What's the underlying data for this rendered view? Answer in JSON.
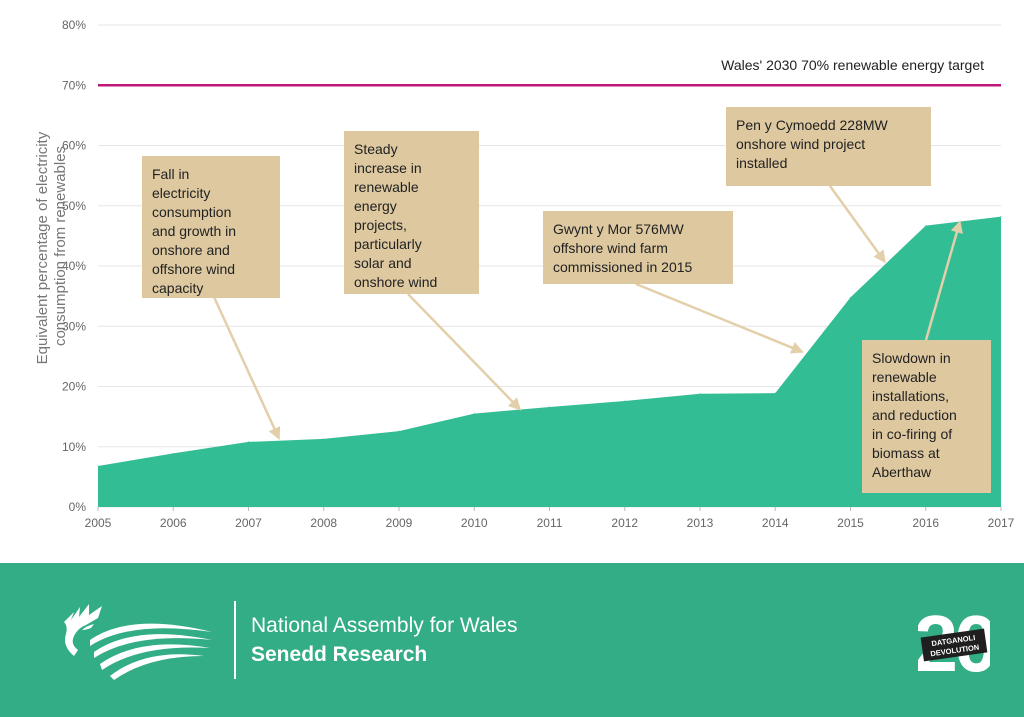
{
  "chart_data": {
    "type": "area",
    "title": "",
    "xlabel": "",
    "ylabel": "Equivalent percentage of electricity consumption from renewables",
    "x": [
      2005,
      2006,
      2007,
      2008,
      2009,
      2010,
      2011,
      2012,
      2013,
      2014,
      2015,
      2016,
      2017
    ],
    "xtick_labels": [
      "2005",
      "2006",
      "2007",
      "2008",
      "2009",
      "2010",
      "2011",
      "2012",
      "2013",
      "2014",
      "2015",
      "2016",
      "2017"
    ],
    "series": [
      {
        "values": [
          6.8,
          8.9,
          10.8,
          11.3,
          12.6,
          15.5,
          16.6,
          17.6,
          18.8,
          18.9,
          34.8,
          46.7,
          48.2
        ],
        "color": "#33bd95"
      }
    ],
    "ylim": [
      0,
      80
    ],
    "yticks": [
      0,
      10,
      20,
      30,
      40,
      50,
      60,
      70,
      80
    ],
    "ytick_labels": [
      "0%",
      "10%",
      "20%",
      "30%",
      "40%",
      "50%",
      "60%",
      "70%",
      "80%"
    ],
    "grid": true,
    "target_line": {
      "value": 70,
      "label": "Wales' 2030 70% renewable energy target",
      "color": "#c0187a"
    },
    "annotations": [
      {
        "text": "Fall in electricity consumption and growth in onshore and offshore wind capacity",
        "lines": [
          "Fall in",
          "electricity",
          "consumption",
          "and growth in",
          "onshore and",
          "offshore wind",
          "capacity"
        ],
        "point": [
          2007.4,
          11.5
        ]
      },
      {
        "text": "Steady increase in renewable energy projects, particularly solar and onshore wind",
        "lines": [
          "Steady",
          "increase in",
          "renewable",
          "energy",
          "projects,",
          "particularly",
          "solar and",
          "onshore wind"
        ],
        "point": [
          2010.6,
          16.3
        ]
      },
      {
        "text": "Gwynt y Mor 576MW offshore wind farm commissioned in 2015",
        "lines": [
          "Gwynt y Mor 576MW",
          "offshore wind farm",
          "commissioned in 2015"
        ],
        "point": [
          2014.35,
          25.8
        ]
      },
      {
        "text": "Pen y Cymoedd 228MW onshore wind project installed",
        "lines": [
          "Pen y Cymoedd 228MW",
          "onshore wind project",
          "installed"
        ],
        "point": [
          2015.45,
          40.8
        ]
      },
      {
        "text": "Slowdown in renewable installations, and reduction in co-firing of biomass at Aberthaw",
        "lines": [
          "Slowdown in",
          "renewable",
          "installations,",
          "and reduction",
          "in co-firing of",
          "biomass at",
          "Aberthaw"
        ],
        "point": [
          2016.45,
          47.2
        ]
      }
    ],
    "colors": {
      "area": "#33bd95",
      "grid": "#e6e6e6",
      "target": "#c0187a",
      "annotation_box": "#ddc8a0",
      "arrow": "#e3cfa9"
    }
  },
  "footer": {
    "organisation": "National Assembly for Wales",
    "department": "Senedd Research",
    "badge_number": "20",
    "badge_line1": "DATGANOLI",
    "badge_line2": "DEVOLUTION",
    "logo_icon": "dragon-logo-icon",
    "background_color": "#33ad85"
  }
}
